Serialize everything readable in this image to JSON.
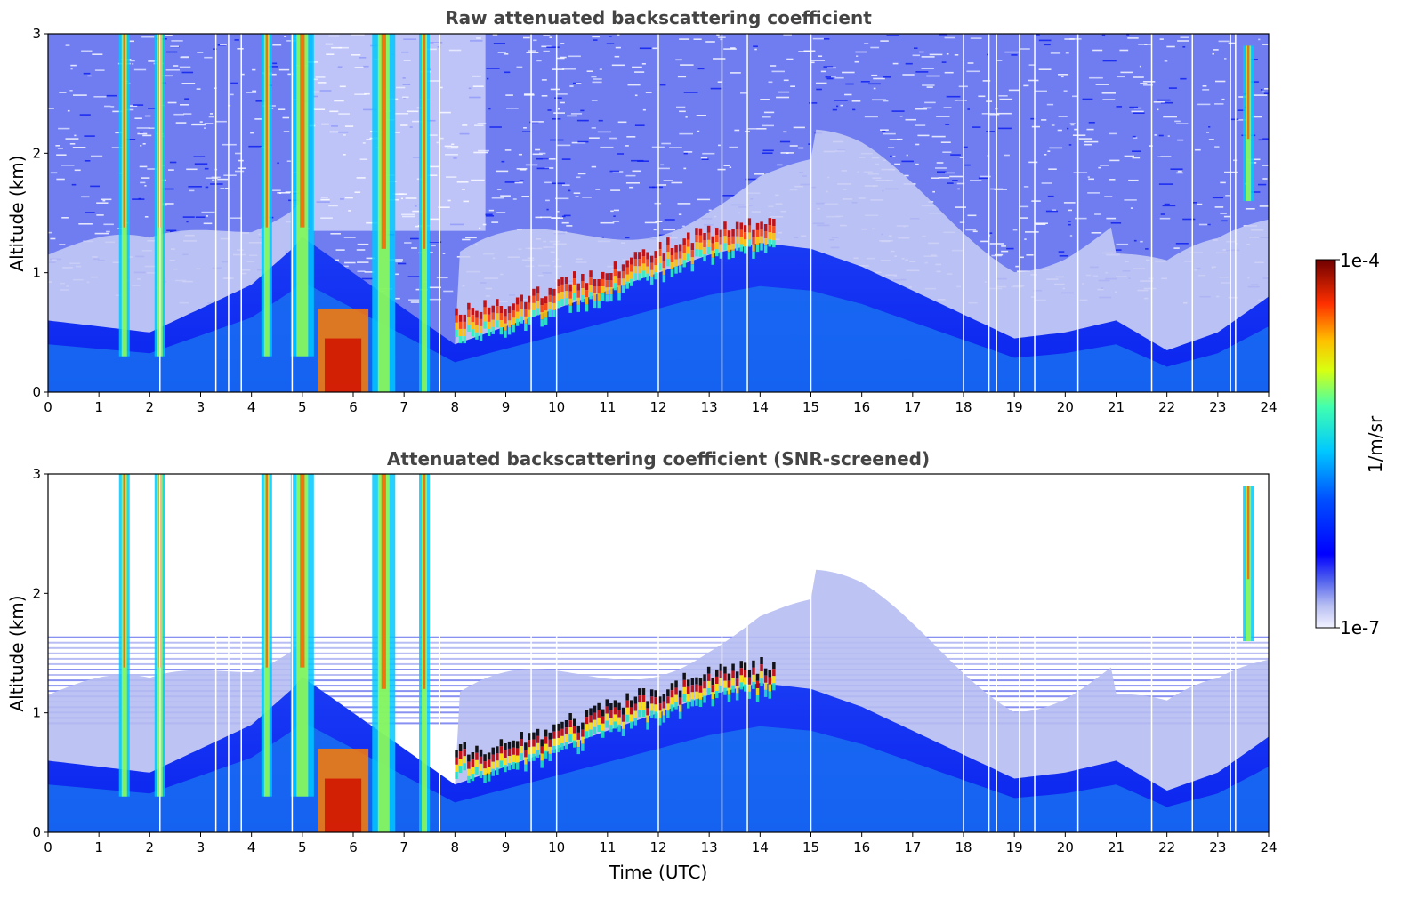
{
  "chart_data": [
    {
      "type": "heatmap",
      "title": "Raw attenuated backscattering coefficient",
      "xlabel": "",
      "ylabel": "Altitude (km)",
      "xlim": [
        0,
        24
      ],
      "ylim": [
        0,
        3
      ],
      "x_ticks": [
        "0",
        "1",
        "2",
        "3",
        "4",
        "5",
        "6",
        "7",
        "8",
        "9",
        "10",
        "11",
        "12",
        "13",
        "14",
        "15",
        "16",
        "17",
        "18",
        "19",
        "20",
        "21",
        "22",
        "23",
        "24"
      ],
      "y_ticks": [
        "0",
        "1",
        "2",
        "3"
      ],
      "features": [
        {
          "kind": "boundary_layer_top_km",
          "x": [
            0,
            2,
            4,
            4.8,
            5,
            8,
            9,
            10,
            11,
            12,
            13,
            14,
            15,
            16,
            17,
            18,
            19,
            20,
            21,
            22,
            23,
            24
          ],
          "y": [
            0.6,
            0.5,
            0.9,
            1.2,
            1.3,
            0.4,
            0.55,
            0.7,
            0.85,
            1.0,
            1.15,
            1.25,
            1.2,
            1.05,
            0.85,
            0.65,
            0.45,
            0.5,
            0.6,
            0.35,
            0.5,
            0.8
          ]
        },
        {
          "kind": "cloud_layer_km",
          "x": [
            8.0,
            9,
            10,
            11,
            12,
            13,
            14,
            14.3
          ],
          "y": [
            0.6,
            0.65,
            0.8,
            0.95,
            1.1,
            1.25,
            1.3,
            1.3
          ]
        },
        {
          "kind": "precipitation_shafts_h",
          "values": [
            1.5,
            2.2,
            4.3,
            5.0,
            6.6,
            7.4,
            23.6
          ]
        }
      ]
    },
    {
      "type": "heatmap",
      "title": "Attenuated backscattering coefficient (SNR-screened)",
      "xlabel": "Time (UTC)",
      "ylabel": "Altitude (km)",
      "xlim": [
        0,
        24
      ],
      "ylim": [
        0,
        3
      ],
      "x_ticks": [
        "0",
        "1",
        "2",
        "3",
        "4",
        "5",
        "6",
        "7",
        "8",
        "9",
        "10",
        "11",
        "12",
        "13",
        "14",
        "15",
        "16",
        "17",
        "18",
        "19",
        "20",
        "21",
        "22",
        "23",
        "24"
      ],
      "y_ticks": [
        "0",
        "1",
        "2",
        "3"
      ],
      "features": [
        {
          "kind": "screened_top_km",
          "value": 1.65
        }
      ]
    }
  ],
  "colorbar": {
    "label": "1/m/sr",
    "max_label": "1e-4",
    "min_label": "1e-7",
    "colormap": [
      "#f2f2ff",
      "#b8bff2",
      "#7a85e8",
      "#2a3af0",
      "#0000ff",
      "#0060ff",
      "#00c0ff",
      "#20f0d0",
      "#60ff80",
      "#c0ff20",
      "#ffe000",
      "#ff8000",
      "#ff2000",
      "#c00000",
      "#7a0000"
    ]
  }
}
